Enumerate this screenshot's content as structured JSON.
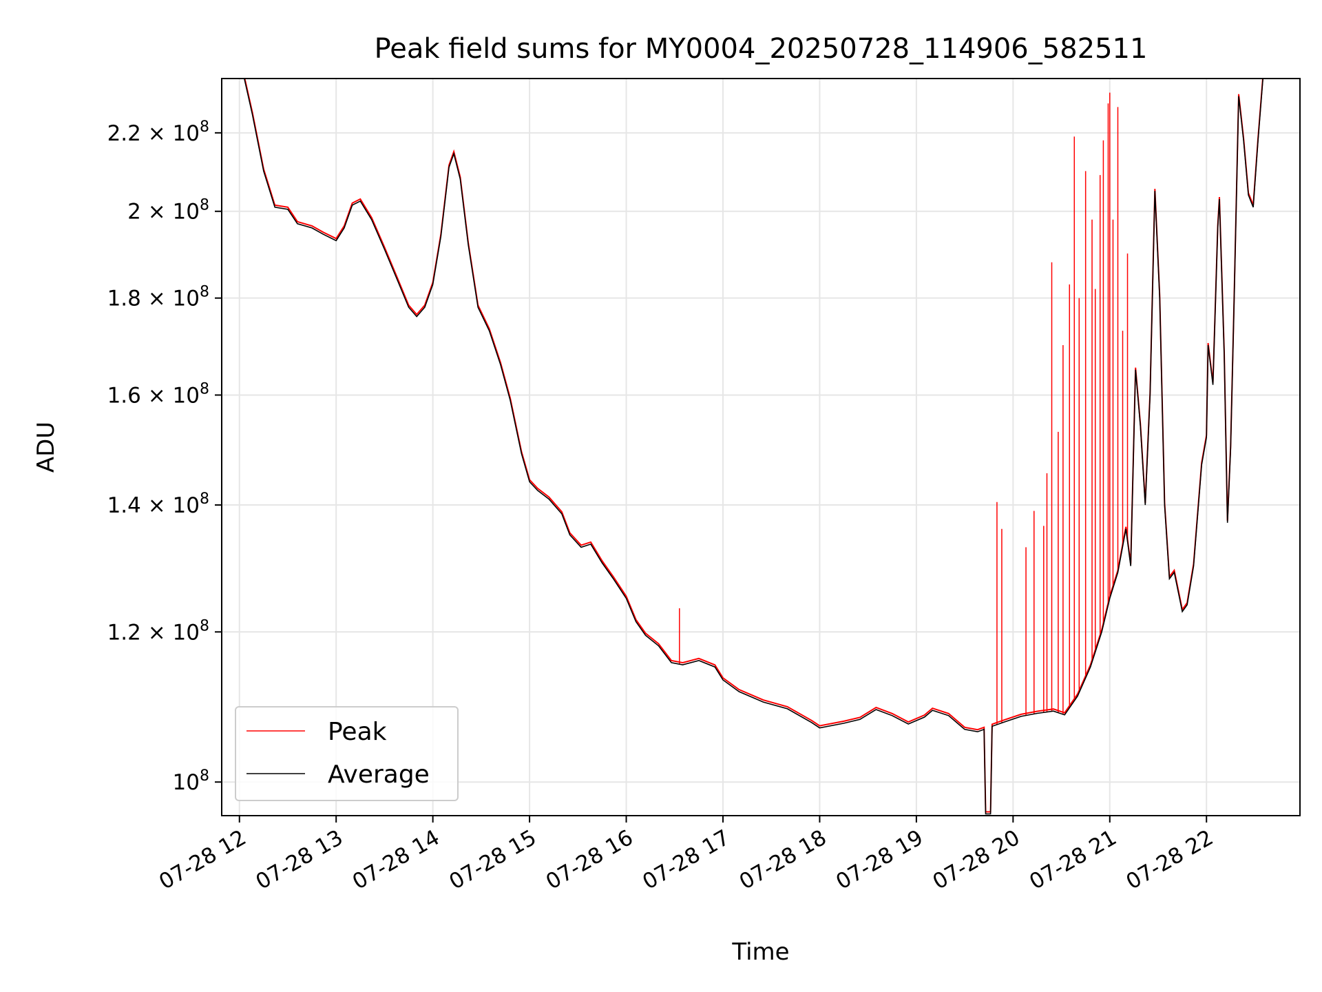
{
  "chart_data": {
    "type": "line",
    "title": "Peak field sums for MY0004_20250728_114906_582511",
    "xlabel": "Time",
    "ylabel": "ADU",
    "y_scale": "log",
    "ylim": [
      96000000,
      235000000
    ],
    "xlim": [
      "2025-07-28 11:49",
      "2025-07-28 22:58"
    ],
    "grid": true,
    "legend_position": "lower-left",
    "x_ticks": [
      {
        "t": "2025-07-28 12:00",
        "label": "07-28 12"
      },
      {
        "t": "2025-07-28 13:00",
        "label": "07-28 13"
      },
      {
        "t": "2025-07-28 14:00",
        "label": "07-28 14"
      },
      {
        "t": "2025-07-28 15:00",
        "label": "07-28 15"
      },
      {
        "t": "2025-07-28 16:00",
        "label": "07-28 16"
      },
      {
        "t": "2025-07-28 17:00",
        "label": "07-28 17"
      },
      {
        "t": "2025-07-28 18:00",
        "label": "07-28 18"
      },
      {
        "t": "2025-07-28 19:00",
        "label": "07-28 19"
      },
      {
        "t": "2025-07-28 20:00",
        "label": "07-28 20"
      },
      {
        "t": "2025-07-28 21:00",
        "label": "07-28 21"
      },
      {
        "t": "2025-07-28 22:00",
        "label": "07-28 22"
      }
    ],
    "y_ticks": [
      {
        "v": 100000000,
        "mantissa": "",
        "base": "10",
        "exp": "8"
      },
      {
        "v": 120000000,
        "mantissa": "1.2",
        "base": "10",
        "exp": "8"
      },
      {
        "v": 140000000,
        "mantissa": "1.4",
        "base": "10",
        "exp": "8"
      },
      {
        "v": 160000000,
        "mantissa": "1.6",
        "base": "10",
        "exp": "8"
      },
      {
        "v": 180000000,
        "mantissa": "1.8",
        "base": "10",
        "exp": "8"
      },
      {
        "v": 200000000,
        "mantissa": "2",
        "base": "10",
        "exp": "8"
      },
      {
        "v": 220000000,
        "mantissa": "2.2",
        "base": "10",
        "exp": "8"
      }
    ],
    "series": [
      {
        "name": "Average",
        "color": "#000000",
        "points": [
          [
            "2025-07-28 11:49",
            235000000
          ],
          [
            "2025-07-28 12:03",
            235000000
          ],
          [
            "2025-07-28 12:08",
            225000000
          ],
          [
            "2025-07-28 12:15",
            210000000
          ],
          [
            "2025-07-28 12:22",
            201000000
          ],
          [
            "2025-07-28 12:30",
            200500000
          ],
          [
            "2025-07-28 12:36",
            197000000
          ],
          [
            "2025-07-28 12:45",
            196000000
          ],
          [
            "2025-07-28 12:52",
            194500000
          ],
          [
            "2025-07-28 13:00",
            193000000
          ],
          [
            "2025-07-28 13:05",
            196000000
          ],
          [
            "2025-07-28 13:10",
            201500000
          ],
          [
            "2025-07-28 13:15",
            202500000
          ],
          [
            "2025-07-28 13:22",
            198000000
          ],
          [
            "2025-07-28 13:30",
            191000000
          ],
          [
            "2025-07-28 13:38",
            184000000
          ],
          [
            "2025-07-28 13:45",
            178000000
          ],
          [
            "2025-07-28 13:50",
            176000000
          ],
          [
            "2025-07-28 13:55",
            178000000
          ],
          [
            "2025-07-28 14:00",
            183000000
          ],
          [
            "2025-07-28 14:05",
            194000000
          ],
          [
            "2025-07-28 14:10",
            211000000
          ],
          [
            "2025-07-28 14:13",
            214500000
          ],
          [
            "2025-07-28 14:17",
            208000000
          ],
          [
            "2025-07-28 14:22",
            192000000
          ],
          [
            "2025-07-28 14:28",
            178000000
          ],
          [
            "2025-07-28 14:35",
            173000000
          ],
          [
            "2025-07-28 14:42",
            166000000
          ],
          [
            "2025-07-28 14:48",
            159000000
          ],
          [
            "2025-07-28 14:55",
            149000000
          ],
          [
            "2025-07-28 15:00",
            144000000
          ],
          [
            "2025-07-28 15:05",
            142500000
          ],
          [
            "2025-07-28 15:12",
            141000000
          ],
          [
            "2025-07-28 15:20",
            138500000
          ],
          [
            "2025-07-28 15:25",
            135000000
          ],
          [
            "2025-07-28 15:32",
            133000000
          ],
          [
            "2025-07-28 15:38",
            133500000
          ],
          [
            "2025-07-28 15:45",
            130500000
          ],
          [
            "2025-07-28 15:52",
            128000000
          ],
          [
            "2025-07-28 16:00",
            125000000
          ],
          [
            "2025-07-28 16:06",
            121500000
          ],
          [
            "2025-07-28 16:12",
            119500000
          ],
          [
            "2025-07-28 16:20",
            118000000
          ],
          [
            "2025-07-28 16:28",
            115600000
          ],
          [
            "2025-07-28 16:35",
            115300000
          ],
          [
            "2025-07-28 16:45",
            115900000
          ],
          [
            "2025-07-28 16:55",
            115000000
          ],
          [
            "2025-07-28 17:00",
            113200000
          ],
          [
            "2025-07-28 17:10",
            111600000
          ],
          [
            "2025-07-28 17:25",
            110200000
          ],
          [
            "2025-07-28 17:40",
            109300000
          ],
          [
            "2025-07-28 17:55",
            107500000
          ],
          [
            "2025-07-28 18:00",
            106800000
          ],
          [
            "2025-07-28 18:15",
            107400000
          ],
          [
            "2025-07-28 18:25",
            107900000
          ],
          [
            "2025-07-28 18:35",
            109200000
          ],
          [
            "2025-07-28 18:45",
            108400000
          ],
          [
            "2025-07-28 18:55",
            107300000
          ],
          [
            "2025-07-28 19:05",
            108200000
          ],
          [
            "2025-07-28 19:10",
            109100000
          ],
          [
            "2025-07-28 19:20",
            108400000
          ],
          [
            "2025-07-28 19:30",
            106600000
          ],
          [
            "2025-07-28 19:38",
            106300000
          ],
          [
            "2025-07-28 19:42",
            106600000
          ],
          [
            "2025-07-28 19:43",
            96200000
          ],
          [
            "2025-07-28 19:46",
            96200000
          ],
          [
            "2025-07-28 19:47",
            107000000
          ],
          [
            "2025-07-28 19:55",
            107600000
          ],
          [
            "2025-07-28 20:05",
            108300000
          ],
          [
            "2025-07-28 20:15",
            108700000
          ],
          [
            "2025-07-28 20:25",
            109000000
          ],
          [
            "2025-07-28 20:32",
            108500000
          ],
          [
            "2025-07-28 20:40",
            111000000
          ],
          [
            "2025-07-28 20:48",
            115000000
          ],
          [
            "2025-07-28 20:55",
            120000000
          ],
          [
            "2025-07-28 21:00",
            125000000
          ],
          [
            "2025-07-28 21:05",
            129000000
          ],
          [
            "2025-07-28 21:10",
            136000000
          ],
          [
            "2025-07-28 21:13",
            130000000
          ],
          [
            "2025-07-28 21:16",
            165000000
          ],
          [
            "2025-07-28 21:19",
            154000000
          ],
          [
            "2025-07-28 21:22",
            140000000
          ],
          [
            "2025-07-28 21:25",
            160000000
          ],
          [
            "2025-07-28 21:28",
            205000000
          ],
          [
            "2025-07-28 21:31",
            180000000
          ],
          [
            "2025-07-28 21:34",
            140000000
          ],
          [
            "2025-07-28 21:37",
            128000000
          ],
          [
            "2025-07-28 21:40",
            129000000
          ],
          [
            "2025-07-28 21:45",
            123000000
          ],
          [
            "2025-07-28 21:48",
            124000000
          ],
          [
            "2025-07-28 21:52",
            130000000
          ],
          [
            "2025-07-28 21:57",
            147000000
          ],
          [
            "2025-07-28 22:00",
            152000000
          ],
          [
            "2025-07-28 22:01",
            170000000
          ],
          [
            "2025-07-28 22:04",
            162000000
          ],
          [
            "2025-07-28 22:07",
            196000000
          ],
          [
            "2025-07-28 22:08",
            203000000
          ],
          [
            "2025-07-28 22:11",
            168000000
          ],
          [
            "2025-07-28 22:13",
            137000000
          ],
          [
            "2025-07-28 22:15",
            150000000
          ],
          [
            "2025-07-28 22:17",
            177000000
          ],
          [
            "2025-07-28 22:20",
            230000000
          ],
          [
            "2025-07-28 22:23",
            218000000
          ],
          [
            "2025-07-28 22:26",
            204000000
          ],
          [
            "2025-07-28 22:29",
            201000000
          ],
          [
            "2025-07-28 22:32",
            218000000
          ],
          [
            "2025-07-28 22:35",
            235000000
          ],
          [
            "2025-07-28 22:58",
            235000000
          ]
        ]
      },
      {
        "name": "Peak",
        "color": "#ff0000",
        "spikes": [
          [
            "2025-07-28 16:33",
            123500000
          ],
          [
            "2025-07-28 19:50",
            140500000
          ],
          [
            "2025-07-28 19:53",
            136000000
          ],
          [
            "2025-07-28 20:08",
            133000000
          ],
          [
            "2025-07-28 20:13",
            139000000
          ],
          [
            "2025-07-28 20:19",
            136500000
          ],
          [
            "2025-07-28 20:21",
            145500000
          ],
          [
            "2025-07-28 20:24",
            188000000
          ],
          [
            "2025-07-28 20:28",
            153000000
          ],
          [
            "2025-07-28 20:31",
            170000000
          ],
          [
            "2025-07-28 20:35",
            183000000
          ],
          [
            "2025-07-28 20:38",
            219000000
          ],
          [
            "2025-07-28 20:41",
            180000000
          ],
          [
            "2025-07-28 20:45",
            210000000
          ],
          [
            "2025-07-28 20:49",
            198000000
          ],
          [
            "2025-07-28 20:51",
            182000000
          ],
          [
            "2025-07-28 20:54",
            209000000
          ],
          [
            "2025-07-28 20:56",
            218000000
          ],
          [
            "2025-07-28 20:59",
            228000000
          ],
          [
            "2025-07-28 21:00",
            231000000
          ],
          [
            "2025-07-28 21:02",
            198000000
          ],
          [
            "2025-07-28 21:05",
            227000000
          ],
          [
            "2025-07-28 21:08",
            173000000
          ],
          [
            "2025-07-28 21:11",
            190000000
          ]
        ]
      }
    ]
  },
  "legend": {
    "items": [
      {
        "label": "Peak",
        "color": "#ff0000"
      },
      {
        "label": "Average",
        "color": "#000000"
      }
    ]
  }
}
